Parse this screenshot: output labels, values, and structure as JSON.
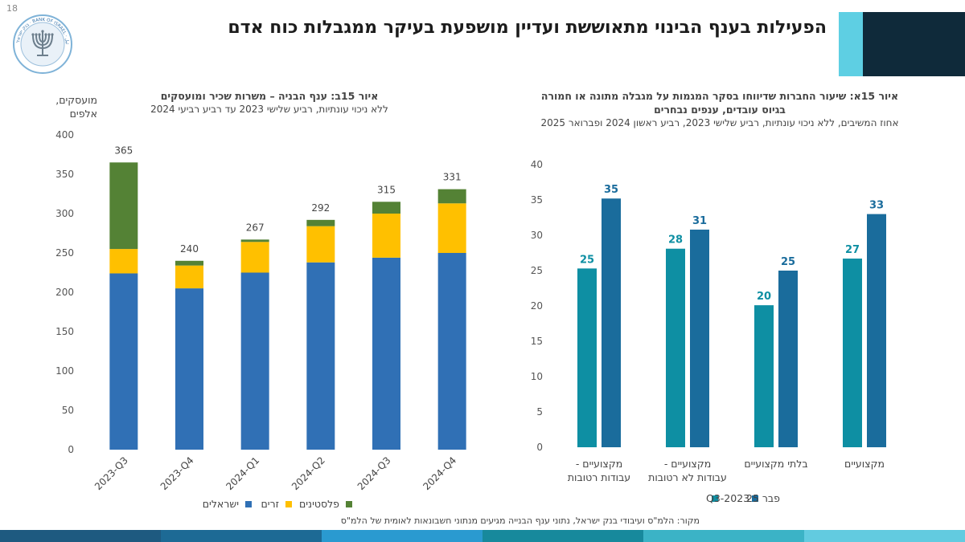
{
  "page": {
    "number": "18",
    "title": "הפעילות בענף הבינוי מתאוששת ועדיין מושפעת בעיקר ממגבלות כוח אדם",
    "source": "מקור: הלמ\"ס ועיבודי בנק ישראל, נתוני ענף הבנייה מגיעים מנתוני חשבונאות לאומית של הלמ\"ס",
    "logo_text": "בנק ישראל · BANK OF ISRAEL · بنك إسرائيل"
  },
  "colors": {
    "israelis": "#3070b5",
    "foreigners": "#ffc000",
    "palestinians": "#548235",
    "q3_2023": "#0e8fa3",
    "feb_25": "#1a6c9c",
    "banner_light": "#5ecfe3",
    "banner_dark": "#0f2a3a",
    "bottom_bar": [
      "#1e5a80",
      "#1d6a95",
      "#2a9ad0",
      "#17899c",
      "#3bb3c6",
      "#62cbe0"
    ]
  },
  "chart_data": [
    {
      "type": "bar",
      "stacked": true,
      "title": "איור 15ב: ענף הבניה – משרות שכיר ומועסקים",
      "subtitle": "ללא ניכוי עונתיות, רביע שלישי 2023 עד רביע רביעי 2024",
      "ylabel": "מועסקים, אלפים",
      "ylim": [
        0,
        400
      ],
      "yticks": [
        "0",
        "50",
        "100",
        "150",
        "200",
        "250",
        "300",
        "350",
        "400"
      ],
      "grid": false,
      "legend": "bottom",
      "categories": [
        "2023-Q3",
        "2023-Q4",
        "2024-Q1",
        "2024-Q2",
        "2024-Q3",
        "2024-Q4"
      ],
      "series": [
        {
          "name": "ישראלים",
          "values": [
            224,
            205,
            225,
            238,
            244,
            250
          ]
        },
        {
          "name": "זרים",
          "values": [
            31,
            29,
            39,
            46,
            56,
            63
          ]
        },
        {
          "name": "פלסטינים",
          "values": [
            110,
            6,
            3,
            8,
            15,
            18
          ]
        }
      ],
      "totals": [
        "365",
        "240",
        "267",
        "292",
        "315",
        "331"
      ]
    },
    {
      "type": "bar",
      "title": "איור 15א: שיעור החברות שדיווחו בסקר המגמות על מגבלה מתונה או חמורה בגיוס עובדים, ענפים נבחרים",
      "subtitle": "אחוז המשיבים, ללא ניכוי עונתיות, רביע שלישי 2023, רביע ראשון 2024 ופברואר 2025",
      "ylim": [
        0,
        40
      ],
      "yticks": [
        "0",
        "5",
        "10",
        "15",
        "20",
        "25",
        "30",
        "35",
        "40"
      ],
      "grid": false,
      "legend": "bottom",
      "categories": [
        "מקצועיים - עבודות רטובות",
        "מקצועיים - עבודות לא רטובות",
        "בלתי מקצועיים",
        "מקצועיים"
      ],
      "series": [
        {
          "name": "Q3-2023",
          "values": [
            25.3,
            28.1,
            20.1,
            26.7
          ],
          "labels": [
            "25",
            "28",
            "20",
            "27"
          ]
        },
        {
          "name": "פבר 25",
          "values": [
            35.2,
            30.8,
            25.0,
            33.0
          ],
          "labels": [
            "35",
            "31",
            "25",
            "33"
          ]
        }
      ]
    }
  ]
}
